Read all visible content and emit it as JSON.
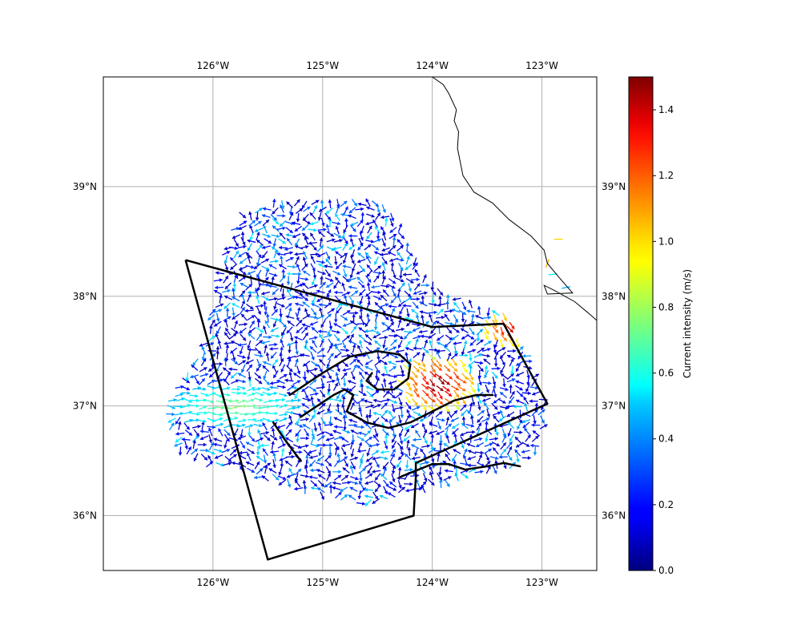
{
  "map": {
    "lon_range": [
      -127.0,
      -122.5
    ],
    "lat_range": [
      35.5,
      40.0
    ],
    "gridlines": true,
    "lon_ticks": [
      {
        "value": -126,
        "label": "126°W"
      },
      {
        "value": -125,
        "label": "125°W"
      },
      {
        "value": -124,
        "label": "124°W"
      },
      {
        "value": -123,
        "label": "123°W"
      }
    ],
    "lat_ticks": [
      {
        "value": 36,
        "label": "36°N"
      },
      {
        "value": 37,
        "label": "37°N"
      },
      {
        "value": 38,
        "label": "38°N"
      },
      {
        "value": 39,
        "label": "39°N"
      }
    ],
    "coastline": [
      [
        -124.0,
        40.0
      ],
      [
        -123.9,
        39.93
      ],
      [
        -123.85,
        39.85
      ],
      [
        -123.78,
        39.7
      ],
      [
        -123.8,
        39.6
      ],
      [
        -123.76,
        39.5
      ],
      [
        -123.77,
        39.35
      ],
      [
        -123.72,
        39.1
      ],
      [
        -123.62,
        38.95
      ],
      [
        -123.45,
        38.85
      ],
      [
        -123.3,
        38.7
      ],
      [
        -123.1,
        38.55
      ],
      [
        -122.98,
        38.42
      ],
      [
        -122.95,
        38.3
      ],
      [
        -122.85,
        38.18
      ],
      [
        -122.72,
        38.03
      ],
      [
        -122.95,
        38.02
      ],
      [
        -122.98,
        38.1
      ],
      [
        -122.88,
        38.05
      ],
      [
        -122.7,
        37.95
      ],
      [
        -122.58,
        37.85
      ],
      [
        -122.5,
        37.78
      ],
      [
        -122.5,
        37.5
      ]
    ],
    "boundary": [
      [
        -126.25,
        38.33
      ],
      [
        -124.0,
        37.72
      ],
      [
        -123.35,
        37.75
      ],
      [
        -122.95,
        37.02
      ],
      [
        -124.15,
        36.48
      ],
      [
        -124.15,
        36.35
      ],
      [
        -124.17,
        36.0
      ],
      [
        -125.5,
        35.6
      ],
      [
        -126.25,
        38.33
      ]
    ],
    "contours": [
      [
        [
          -125.3,
          37.1
        ],
        [
          -125.0,
          37.3
        ],
        [
          -124.75,
          37.45
        ],
        [
          -124.5,
          37.5
        ],
        [
          -124.3,
          37.47
        ],
        [
          -124.2,
          37.38
        ],
        [
          -124.22,
          37.25
        ],
        [
          -124.35,
          37.15
        ],
        [
          -124.5,
          37.15
        ],
        [
          -124.6,
          37.23
        ],
        [
          -124.55,
          37.3
        ]
      ],
      [
        [
          -125.2,
          36.9
        ],
        [
          -125.05,
          37.0
        ],
        [
          -124.9,
          37.1
        ],
        [
          -124.8,
          37.15
        ],
        [
          -124.72,
          37.1
        ],
        [
          -124.78,
          36.95
        ],
        [
          -124.6,
          36.85
        ],
        [
          -124.4,
          36.8
        ],
        [
          -124.2,
          36.85
        ],
        [
          -124.0,
          36.95
        ],
        [
          -123.8,
          37.05
        ],
        [
          -123.6,
          37.1
        ],
        [
          -123.45,
          37.1
        ]
      ],
      [
        [
          -124.3,
          36.35
        ],
        [
          -124.0,
          36.47
        ],
        [
          -123.85,
          36.47
        ],
        [
          -123.7,
          36.42
        ],
        [
          -123.5,
          36.45
        ],
        [
          -123.35,
          36.48
        ],
        [
          -123.2,
          36.45
        ]
      ],
      [
        [
          -125.45,
          36.85
        ],
        [
          -125.35,
          36.7
        ],
        [
          -125.2,
          36.5
        ]
      ]
    ],
    "colors": {
      "boundary": "#000000",
      "coastline": "#000000",
      "gridline": "#b0b0b0"
    }
  },
  "colorbar": {
    "label": "Current intensity (m/s)",
    "vmin": 0.0,
    "vmax": 1.5,
    "ticks": [
      {
        "value": 0.0,
        "label": "0.0"
      },
      {
        "value": 0.2,
        "label": "0.2"
      },
      {
        "value": 0.4,
        "label": "0.4"
      },
      {
        "value": 0.6,
        "label": "0.6"
      },
      {
        "value": 0.8,
        "label": "0.8"
      },
      {
        "value": 1.0,
        "label": "1.0"
      },
      {
        "value": 1.2,
        "label": "1.2"
      },
      {
        "value": 1.4,
        "label": "1.4"
      }
    ],
    "colormap": "jet"
  }
}
